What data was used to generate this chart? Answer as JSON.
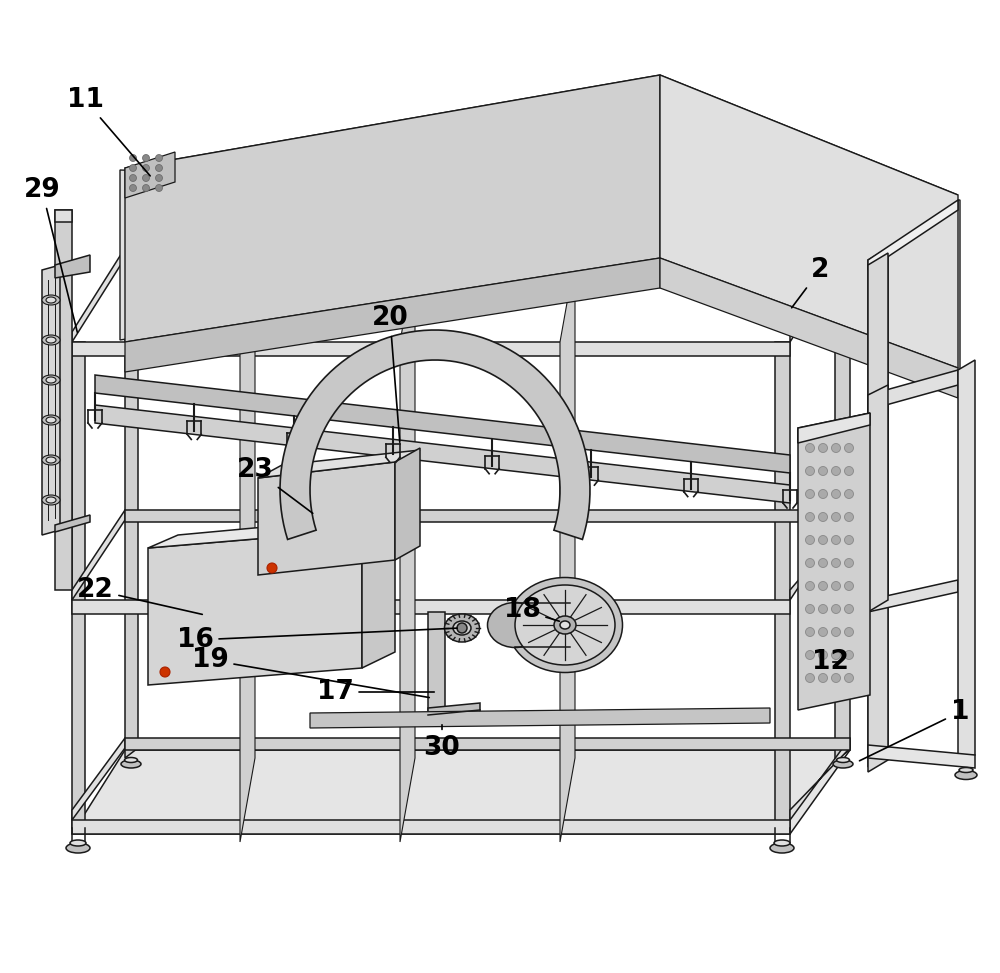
{
  "background_color": "#ffffff",
  "line_color": "#1a1a1a",
  "figsize": [
    10.0,
    9.73
  ],
  "labels_data": [
    [
      "11",
      85,
      100,
      152,
      178
    ],
    [
      "29",
      42,
      190,
      78,
      335
    ],
    [
      "2",
      820,
      270,
      790,
      310
    ],
    [
      "20",
      390,
      318,
      400,
      445
    ],
    [
      "23",
      255,
      470,
      315,
      515
    ],
    [
      "22",
      95,
      590,
      205,
      615
    ],
    [
      "16",
      195,
      640,
      460,
      628
    ],
    [
      "19",
      210,
      660,
      432,
      698
    ],
    [
      "17",
      335,
      692,
      437,
      692
    ],
    [
      "18",
      522,
      610,
      562,
      622
    ],
    [
      "30",
      442,
      748,
      442,
      722
    ],
    [
      "12",
      830,
      662,
      842,
      662
    ],
    [
      "1",
      960,
      712,
      857,
      762
    ]
  ]
}
